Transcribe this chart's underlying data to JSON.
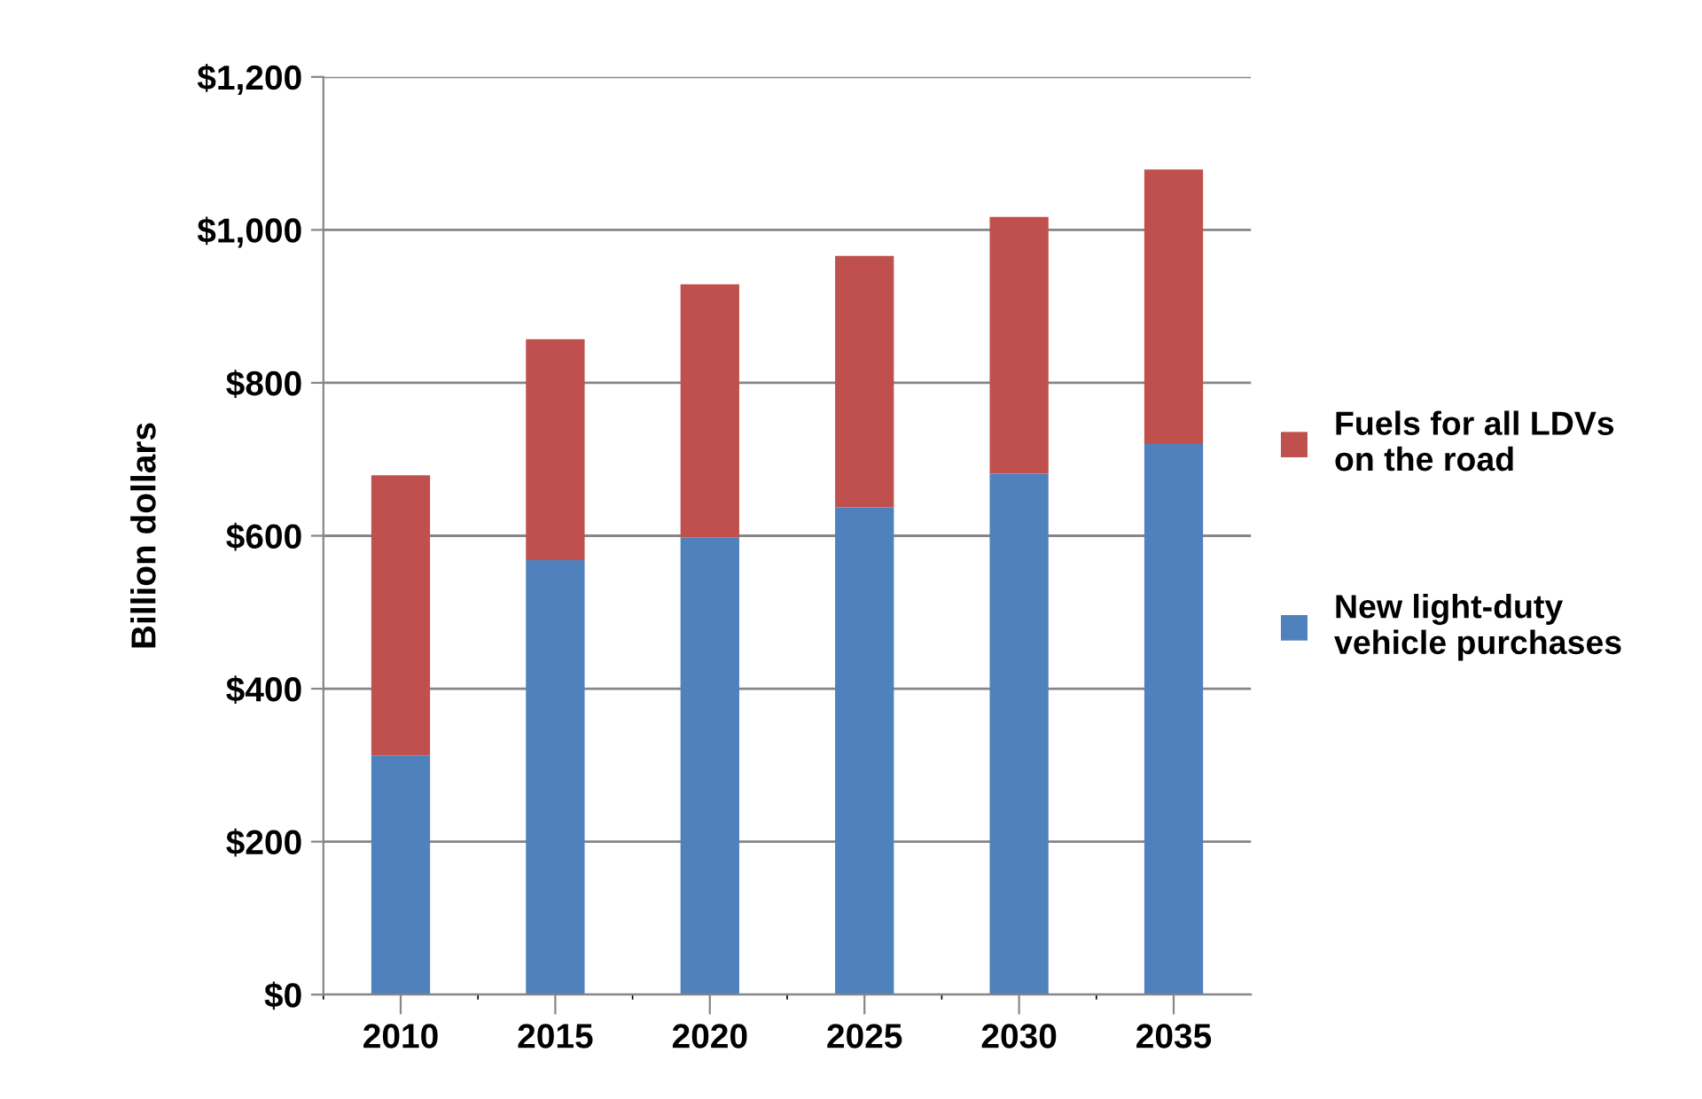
{
  "chart_data": {
    "type": "bar",
    "stacked": true,
    "ylabel": "Billion dollars",
    "categories": [
      "2010",
      "2015",
      "2020",
      "2025",
      "2030",
      "2035"
    ],
    "series": [
      {
        "name": "New light-duty vehicle purchases",
        "color": "#4f81bd",
        "values": [
          313,
          568,
          598,
          637,
          681,
          720
        ]
      },
      {
        "name": "Fuels for all LDVs on the road",
        "color": "#c0504d",
        "values": [
          366,
          289,
          331,
          329,
          336,
          359
        ]
      }
    ],
    "ylim": [
      0,
      1200
    ],
    "yticks": [
      {
        "value": 0,
        "label": "$0"
      },
      {
        "value": 200,
        "label": "$200"
      },
      {
        "value": 400,
        "label": "$400"
      },
      {
        "value": 600,
        "label": "$600"
      },
      {
        "value": 800,
        "label": "$800"
      },
      {
        "value": 1000,
        "label": "$1,000"
      },
      {
        "value": 1200,
        "label": "$1,200"
      }
    ],
    "grid": "y",
    "legend": "right"
  }
}
